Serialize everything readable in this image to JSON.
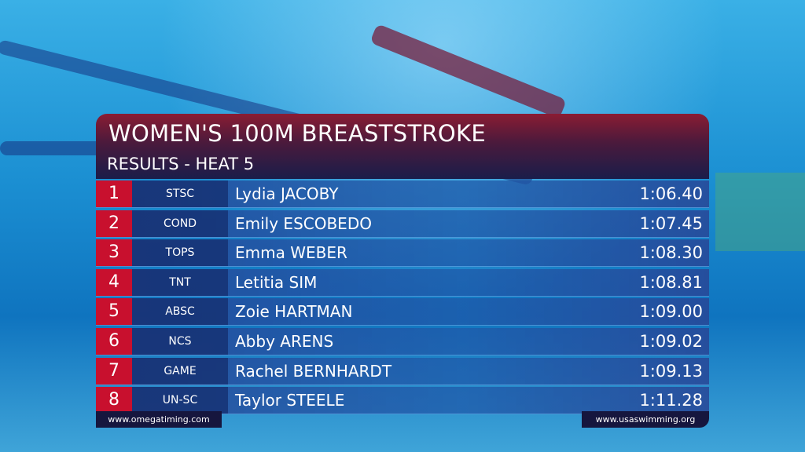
{
  "header": {
    "title": "WOMEN'S 100M BREASTSTROKE",
    "subtitle": "RESULTS - HEAT 5"
  },
  "table": {
    "rows": [
      [
        "1",
        "STSC",
        "Lydia JACOBY",
        "1:06.40"
      ],
      [
        "2",
        "COND",
        "Emily ESCOBEDO",
        "1:07.45"
      ],
      [
        "3",
        "TOPS",
        "Emma WEBER",
        "1:08.30"
      ],
      [
        "4",
        "TNT",
        "Letitia SIM",
        "1:08.81"
      ],
      [
        "5",
        "ABSC",
        "Zoie HARTMAN",
        "1:09.00"
      ],
      [
        "6",
        "NCS",
        "Abby ARENS",
        "1:09.02"
      ],
      [
        "7",
        "GAME",
        "Rachel BERNHARDT",
        "1:09.13"
      ],
      [
        "8",
        "UN-SC",
        "Taylor STEELE",
        "1:11.28"
      ]
    ]
  },
  "footer": {
    "left": "www.omegatiming.com",
    "right": "www.usaswimming.org"
  }
}
